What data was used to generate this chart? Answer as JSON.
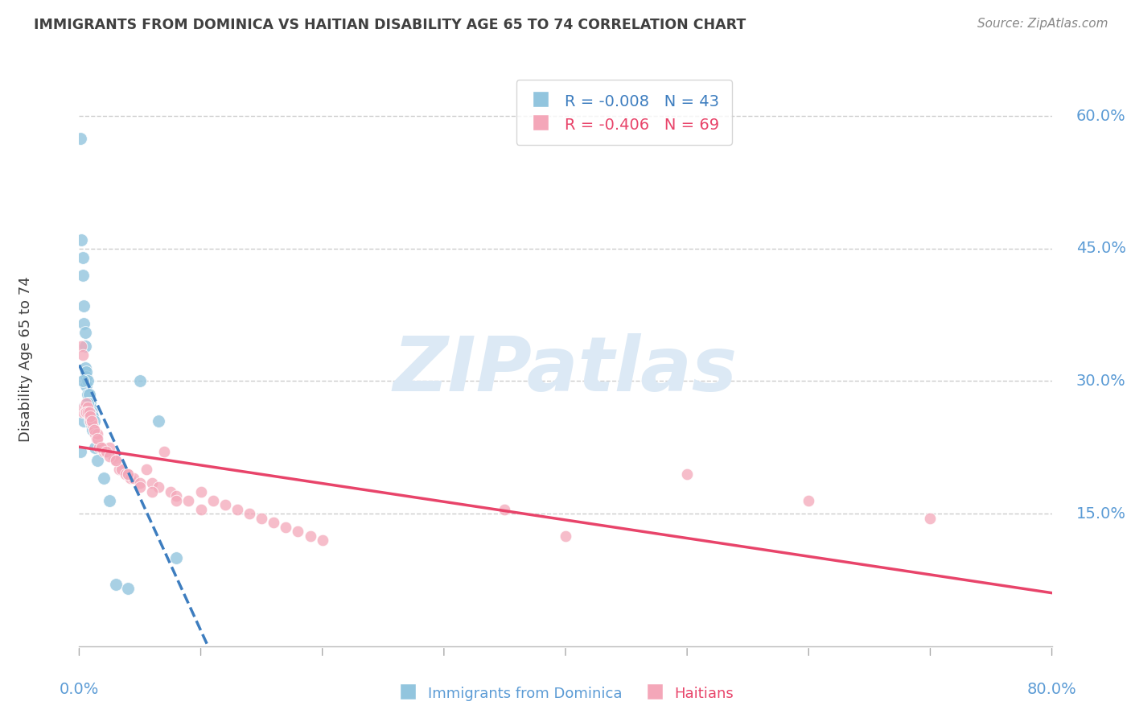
{
  "title": "IMMIGRANTS FROM DOMINICA VS HAITIAN DISABILITY AGE 65 TO 74 CORRELATION CHART",
  "source": "Source: ZipAtlas.com",
  "ylabel": "Disability Age 65 to 74",
  "dominica_label": "Immigrants from Dominica",
  "haitian_label": "Haitians",
  "dominica_R": -0.008,
  "dominica_N": 43,
  "haitian_R": -0.406,
  "haitian_N": 69,
  "xlim": [
    0.0,
    0.8
  ],
  "ylim": [
    0.0,
    0.65
  ],
  "yticks": [
    0.15,
    0.3,
    0.45,
    0.6
  ],
  "ytick_labels": [
    "15.0%",
    "30.0%",
    "45.0%",
    "60.0%"
  ],
  "dominica_color": "#92c5de",
  "haitian_color": "#f4a7b9",
  "dominica_line_color": "#3d7dbf",
  "haitian_line_color": "#e8446a",
  "watermark_text": "ZIPatlas",
  "watermark_color": "#dce9f5",
  "background_color": "#ffffff",
  "grid_color": "#cccccc",
  "axis_label_color": "#5b9bd5",
  "title_color": "#404040",
  "dominica_x": [
    0.001,
    0.001,
    0.002,
    0.003,
    0.003,
    0.004,
    0.004,
    0.005,
    0.005,
    0.005,
    0.006,
    0.006,
    0.006,
    0.007,
    0.007,
    0.007,
    0.008,
    0.008,
    0.009,
    0.009,
    0.01,
    0.01,
    0.011,
    0.012,
    0.003,
    0.004,
    0.004,
    0.005,
    0.006,
    0.007,
    0.008,
    0.009,
    0.01,
    0.011,
    0.013,
    0.015,
    0.02,
    0.025,
    0.03,
    0.04,
    0.05,
    0.065,
    0.08
  ],
  "dominica_y": [
    0.575,
    0.22,
    0.46,
    0.44,
    0.42,
    0.385,
    0.365,
    0.355,
    0.34,
    0.315,
    0.305,
    0.31,
    0.295,
    0.3,
    0.285,
    0.275,
    0.285,
    0.275,
    0.275,
    0.27,
    0.265,
    0.26,
    0.26,
    0.255,
    0.3,
    0.27,
    0.255,
    0.27,
    0.265,
    0.275,
    0.265,
    0.255,
    0.25,
    0.245,
    0.225,
    0.21,
    0.19,
    0.165,
    0.07,
    0.065,
    0.3,
    0.255,
    0.1
  ],
  "haitian_x": [
    0.002,
    0.003,
    0.003,
    0.004,
    0.005,
    0.005,
    0.006,
    0.007,
    0.008,
    0.009,
    0.01,
    0.011,
    0.012,
    0.013,
    0.014,
    0.015,
    0.016,
    0.018,
    0.02,
    0.022,
    0.025,
    0.028,
    0.03,
    0.033,
    0.035,
    0.038,
    0.04,
    0.042,
    0.045,
    0.05,
    0.055,
    0.06,
    0.065,
    0.07,
    0.075,
    0.08,
    0.09,
    0.1,
    0.11,
    0.12,
    0.13,
    0.14,
    0.15,
    0.16,
    0.17,
    0.18,
    0.19,
    0.2,
    0.006,
    0.007,
    0.008,
    0.009,
    0.01,
    0.012,
    0.015,
    0.018,
    0.022,
    0.025,
    0.03,
    0.04,
    0.05,
    0.06,
    0.08,
    0.1,
    0.35,
    0.4,
    0.5,
    0.6,
    0.7
  ],
  "haitian_y": [
    0.34,
    0.33,
    0.265,
    0.27,
    0.27,
    0.265,
    0.275,
    0.27,
    0.26,
    0.255,
    0.255,
    0.25,
    0.245,
    0.24,
    0.235,
    0.24,
    0.225,
    0.225,
    0.22,
    0.22,
    0.225,
    0.215,
    0.21,
    0.2,
    0.2,
    0.195,
    0.195,
    0.19,
    0.19,
    0.185,
    0.2,
    0.185,
    0.18,
    0.22,
    0.175,
    0.17,
    0.165,
    0.175,
    0.165,
    0.16,
    0.155,
    0.15,
    0.145,
    0.14,
    0.135,
    0.13,
    0.125,
    0.12,
    0.265,
    0.265,
    0.265,
    0.26,
    0.255,
    0.245,
    0.235,
    0.225,
    0.22,
    0.215,
    0.21,
    0.195,
    0.18,
    0.175,
    0.165,
    0.155,
    0.155,
    0.125,
    0.195,
    0.165,
    0.145
  ]
}
